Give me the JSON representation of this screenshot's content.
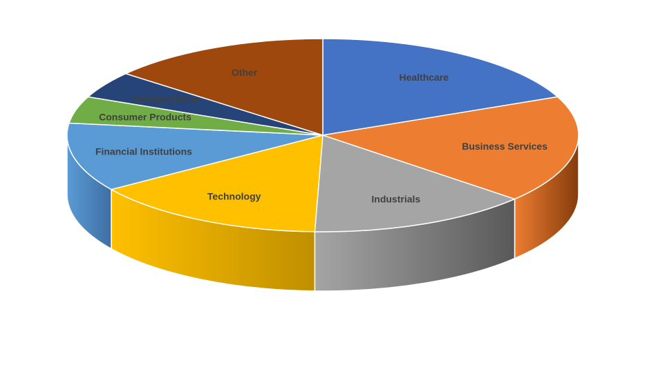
{
  "chart_data": {
    "type": "pie",
    "style": "3d",
    "title": "",
    "slices": [
      {
        "label": "Healthcare",
        "value": 18.5,
        "color": "#4472C4",
        "side_color": "#2F5597"
      },
      {
        "label": "Business Services",
        "value": 18.0,
        "color": "#ED7D31",
        "side_color": "#843C0C"
      },
      {
        "label": "Industrials",
        "value": 14.0,
        "color": "#A5A5A5",
        "side_color": "#595959"
      },
      {
        "label": "Technology",
        "value": 15.0,
        "color": "#FFC000",
        "side_color": "#BF8F00"
      },
      {
        "label": "Financial Institutions",
        "value": 11.5,
        "color": "#5B9BD5",
        "side_color": "#3E6FA3"
      },
      {
        "label": "Consumer Products",
        "value": 4.5,
        "color": "#70AD47",
        "side_color": "#4E7A31"
      },
      {
        "label": "Transportation",
        "value": 4.5,
        "color": "#264478",
        "side_color": "#1A3157"
      },
      {
        "label": "Other",
        "value": 14.0,
        "color": "#9E480E",
        "side_color": "#6B300A"
      }
    ]
  }
}
